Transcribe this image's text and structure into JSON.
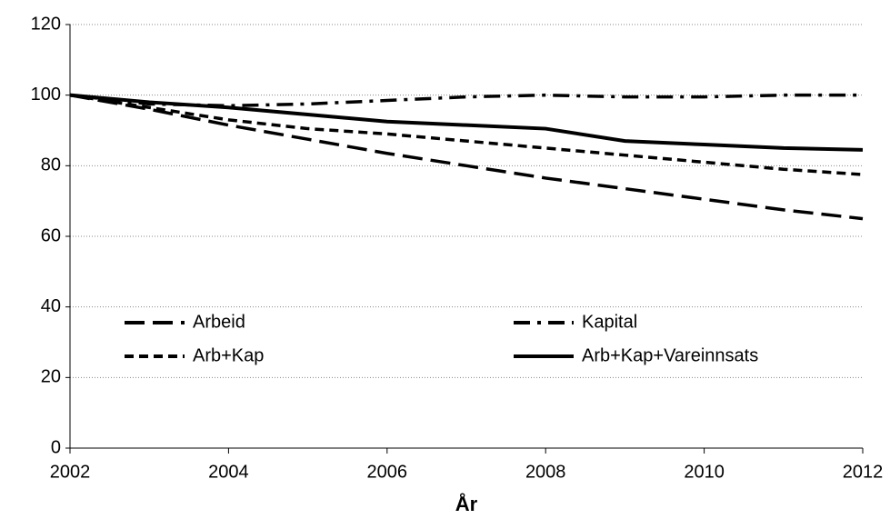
{
  "chart_data": {
    "type": "line",
    "x_label": "År",
    "x": [
      2002,
      2003,
      2004,
      2005,
      2006,
      2007,
      2008,
      2009,
      2010,
      2011,
      2012
    ],
    "series": [
      {
        "name": "Arbeid",
        "color": "#000000",
        "dash": "long",
        "values": [
          100,
          96,
          91.5,
          87.5,
          83.5,
          80,
          76.5,
          73.5,
          70.5,
          67.5,
          65
        ]
      },
      {
        "name": "Kapital",
        "color": "#000000",
        "dash": "dash-dot",
        "values": [
          100,
          97.5,
          97,
          97.5,
          98.5,
          99.5,
          100,
          99.5,
          99.5,
          100,
          100
        ]
      },
      {
        "name": "Arb+Kap",
        "color": "#000000",
        "dash": "short",
        "values": [
          100,
          96.5,
          93,
          90.5,
          89,
          87,
          85,
          83,
          81,
          79,
          77.5
        ]
      },
      {
        "name": "Arb+Kap+Vareinnsats",
        "color": "#000000",
        "dash": "solid",
        "values": [
          100,
          98,
          96.5,
          94.5,
          92.5,
          91.5,
          90.5,
          87,
          86,
          85,
          84.5
        ]
      }
    ],
    "xlim": [
      2002,
      2012
    ],
    "xticks": [
      2002,
      2004,
      2006,
      2008,
      2010,
      2012
    ],
    "ylim": [
      0,
      120
    ],
    "yticks": [
      0,
      20,
      40,
      60,
      80,
      100,
      120
    ],
    "grid": true
  }
}
